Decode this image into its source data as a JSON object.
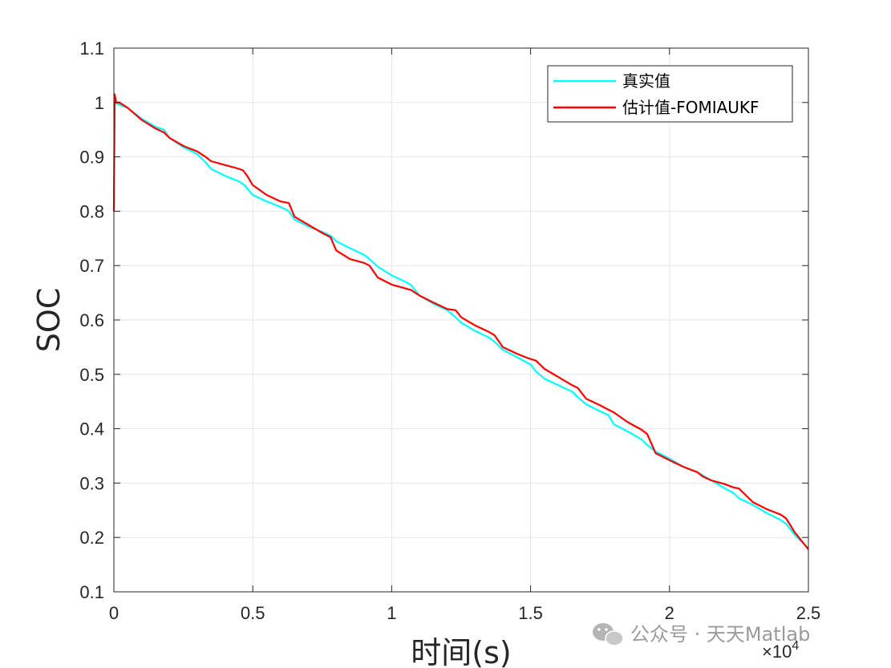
{
  "chart_data": {
    "type": "line",
    "xlabel": "时间(s)",
    "ylabel": "SOC",
    "x_exponent_label": "×10",
    "x_exponent_power": "4",
    "xlim": [
      0,
      25000
    ],
    "ylim": [
      0.1,
      1.1
    ],
    "xticks": [
      0,
      5000,
      10000,
      15000,
      20000,
      25000
    ],
    "xtick_labels": [
      "0",
      "0.5",
      "1",
      "1.5",
      "2",
      "2.5"
    ],
    "yticks": [
      0.1,
      0.2,
      0.3,
      0.4,
      0.5,
      0.6,
      0.7,
      0.8,
      0.9,
      1.0,
      1.1
    ],
    "ytick_labels": [
      "0.1",
      "0.2",
      "0.3",
      "0.4",
      "0.5",
      "0.6",
      "0.7",
      "0.8",
      "0.9",
      "1",
      "1.1"
    ],
    "grid": true,
    "legend_position": "top-right",
    "series": [
      {
        "name": "真实值",
        "color": "#00FFFF",
        "x": [
          0,
          500,
          1000,
          1500,
          1800,
          2000,
          2500,
          3000,
          3300,
          3500,
          4000,
          4500,
          4700,
          5000,
          5500,
          6000,
          6300,
          6500,
          7000,
          7500,
          7800,
          8000,
          8500,
          9000,
          9200,
          9500,
          10000,
          10500,
          10700,
          11000,
          11500,
          12000,
          12300,
          12500,
          13000,
          13500,
          13700,
          14000,
          14500,
          15000,
          15200,
          15500,
          16000,
          16500,
          16700,
          17000,
          17500,
          17800,
          18000,
          18500,
          19000,
          19200,
          19500,
          20000,
          20500,
          21000,
          21500,
          22000,
          22300,
          22500,
          23000,
          23500,
          24000,
          24200,
          24500,
          25000
        ],
        "values": [
          1.0,
          0.99,
          0.97,
          0.955,
          0.95,
          0.935,
          0.918,
          0.905,
          0.89,
          0.878,
          0.865,
          0.855,
          0.848,
          0.83,
          0.818,
          0.808,
          0.8,
          0.785,
          0.772,
          0.762,
          0.755,
          0.745,
          0.732,
          0.72,
          0.712,
          0.698,
          0.682,
          0.67,
          0.664,
          0.645,
          0.63,
          0.618,
          0.605,
          0.595,
          0.58,
          0.568,
          0.56,
          0.545,
          0.532,
          0.518,
          0.505,
          0.492,
          0.48,
          0.468,
          0.458,
          0.445,
          0.432,
          0.425,
          0.408,
          0.395,
          0.38,
          0.37,
          0.358,
          0.345,
          0.33,
          0.32,
          0.305,
          0.29,
          0.282,
          0.272,
          0.26,
          0.245,
          0.232,
          0.225,
          0.205,
          0.18
        ]
      },
      {
        "name": "估计值-FOMIAUKF",
        "color": "#FF0000",
        "x": [
          0,
          30,
          80,
          200,
          500,
          1000,
          1500,
          1800,
          2000,
          2500,
          3000,
          3300,
          3500,
          4000,
          4500,
          4650,
          4800,
          5000,
          5500,
          6000,
          6300,
          6500,
          7000,
          7500,
          7800,
          8000,
          8500,
          9000,
          9200,
          9500,
          10000,
          10500,
          10700,
          11000,
          11500,
          12000,
          12300,
          12500,
          13000,
          13500,
          13700,
          14000,
          14500,
          14900,
          15200,
          15500,
          16000,
          16500,
          16700,
          17000,
          17500,
          17800,
          18000,
          18500,
          19000,
          19200,
          19500,
          20000,
          20500,
          21000,
          21200,
          21500,
          22000,
          22300,
          22500,
          23000,
          23500,
          24000,
          24200,
          24500,
          25000
        ],
        "values": [
          0.8,
          1.015,
          1.0,
          1.0,
          0.99,
          0.968,
          0.952,
          0.945,
          0.935,
          0.92,
          0.91,
          0.9,
          0.892,
          0.885,
          0.878,
          0.875,
          0.865,
          0.848,
          0.83,
          0.818,
          0.815,
          0.79,
          0.775,
          0.76,
          0.752,
          0.728,
          0.712,
          0.705,
          0.7,
          0.678,
          0.665,
          0.658,
          0.655,
          0.645,
          0.632,
          0.62,
          0.618,
          0.605,
          0.59,
          0.578,
          0.572,
          0.55,
          0.538,
          0.53,
          0.525,
          0.51,
          0.495,
          0.48,
          0.475,
          0.455,
          0.443,
          0.435,
          0.43,
          0.412,
          0.398,
          0.39,
          0.355,
          0.342,
          0.33,
          0.32,
          0.312,
          0.305,
          0.298,
          0.292,
          0.29,
          0.265,
          0.252,
          0.242,
          0.235,
          0.21,
          0.178
        ]
      }
    ]
  },
  "watermark": {
    "text": "公众号 · 天天Matlab",
    "icon": "wechat-icon"
  }
}
